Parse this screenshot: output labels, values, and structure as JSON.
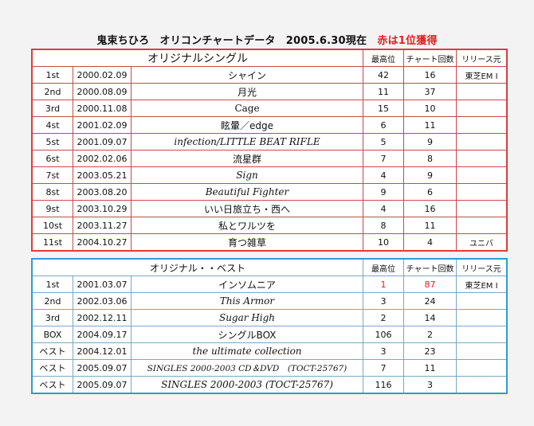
{
  "page_title_main": "鬼束ちひろ　オリコンチャートデータ　2005.6.30現在",
  "page_title_note": "赤は1位獲得",
  "singles": {
    "section_title": "オリジナルシングル",
    "col_peak": "最高位",
    "col_weeks": "チャート回数",
    "col_label": "リリース元",
    "rows": [
      {
        "rank": "1st",
        "date": "2000.02.09",
        "title": "シャイン",
        "peak": "42",
        "weeks": "16",
        "label": "東芝EM I"
      },
      {
        "rank": "2nd",
        "date": "2000.08.09",
        "title": "月光",
        "peak": "11",
        "weeks": "37",
        "label": ""
      },
      {
        "rank": "3rd",
        "date": "2000.11.08",
        "title": "Cage",
        "peak": "15",
        "weeks": "10",
        "label": ""
      },
      {
        "rank": "4st",
        "date": "2001.02.09",
        "title": "眩暈／edge",
        "peak": "6",
        "weeks": "11",
        "label": ""
      },
      {
        "rank": "5st",
        "date": "2001.09.07",
        "title": "infection/LITTLE BEAT RIFLE",
        "peak": "5",
        "weeks": "9",
        "label": ""
      },
      {
        "rank": "6st",
        "date": "2002.02.06",
        "title": "流星群",
        "peak": "7",
        "weeks": "8",
        "label": ""
      },
      {
        "rank": "7st",
        "date": "2003.05.21",
        "title": "Sign",
        "peak": "4",
        "weeks": "9",
        "label": ""
      },
      {
        "rank": "8st",
        "date": "2003.08.20",
        "title": "Beautiful Fighter",
        "peak": "9",
        "weeks": "6",
        "label": ""
      },
      {
        "rank": "9st",
        "date": "2003.10.29",
        "title": "いい日旅立ち・西へ",
        "peak": "4",
        "weeks": "16",
        "label": ""
      },
      {
        "rank": "10st",
        "date": "2003.11.27",
        "title": "私とワルツを",
        "peak": "8",
        "weeks": "11",
        "label": ""
      },
      {
        "rank": "11st",
        "date": "2004.10.27",
        "title": "育つ雑草",
        "peak": "10",
        "weeks": "4",
        "label": "ユニバ"
      }
    ]
  },
  "best": {
    "section_title": "オリジナル・・ベスト",
    "col_peak": "最高位",
    "col_weeks": "チャート回数",
    "col_label": "リリース元",
    "rows": [
      {
        "rank": "1st",
        "date": "2001.03.07",
        "title": "インソムニア",
        "peak": "1",
        "weeks": "87",
        "label": "東芝EM I"
      },
      {
        "rank": "2nd",
        "date": "2002.03.06",
        "title": "This Armor",
        "peak": "3",
        "weeks": "24",
        "label": ""
      },
      {
        "rank": "3rd",
        "date": "2002.12.11",
        "title": "Sugar High",
        "peak": "2",
        "weeks": "14",
        "label": ""
      },
      {
        "rank": "BOX",
        "date": "2004.09.17",
        "title": "シングルBOX",
        "peak": "106",
        "weeks": "2",
        "label": ""
      },
      {
        "rank": "ベスト",
        "date": "2004.12.01",
        "title": "the ultimate collection",
        "peak": "3",
        "weeks": "23",
        "label": ""
      },
      {
        "rank": "ベスト",
        "date": "2005.09.07",
        "title": "SINGLES 2000-2003 CD＆DVD　(TOCT-25767)",
        "peak": "7",
        "weeks": "11",
        "label": ""
      },
      {
        "rank": "ベスト",
        "date": "2005.09.07",
        "title": "SINGLES 2000-2003 (TOCT-25767)",
        "peak": "116",
        "weeks": "3",
        "label": ""
      }
    ]
  }
}
